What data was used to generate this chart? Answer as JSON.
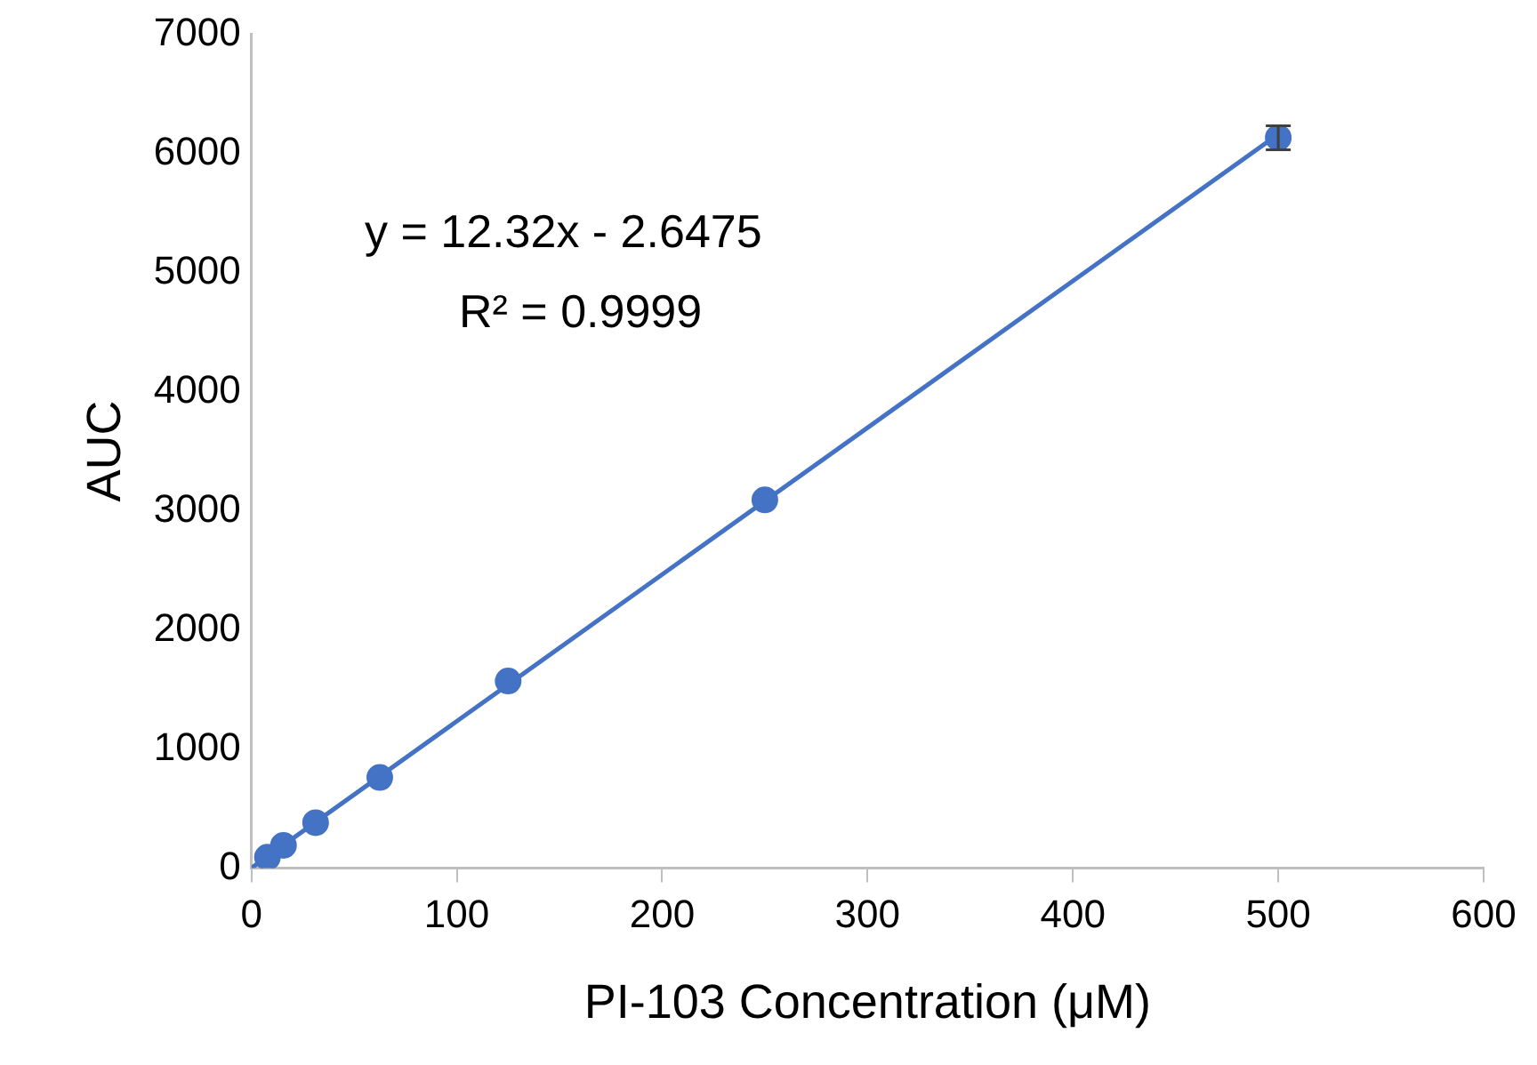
{
  "chart_data": {
    "type": "scatter",
    "xlabel": "PI-103 Concentration (μM)",
    "ylabel": "AUC",
    "xlim": [
      0,
      600
    ],
    "xticks": [
      0,
      100,
      200,
      300,
      400,
      500,
      600
    ],
    "ylim": [
      0,
      7000
    ],
    "yticks": [
      0,
      1000,
      2000,
      3000,
      4000,
      5000,
      6000,
      7000
    ],
    "grid": false,
    "legend": false,
    "annotations": [
      "y = 12.32x - 2.6475",
      "R² = 0.9999"
    ],
    "series": [
      {
        "type": "scatter",
        "marker": "circle",
        "color": "#4472c4",
        "x": [
          7.8,
          15.6,
          31.25,
          62.5,
          125,
          250,
          500
        ],
        "values": [
          90,
          190,
          380,
          760,
          1570,
          3090,
          6130
        ],
        "errors": [
          null,
          null,
          null,
          null,
          null,
          null,
          100
        ]
      },
      {
        "type": "line",
        "marker": "none",
        "color": "#4472c4",
        "line_style": "solid",
        "x": [
          0,
          500
        ],
        "values": [
          0,
          6160
        ]
      }
    ]
  }
}
